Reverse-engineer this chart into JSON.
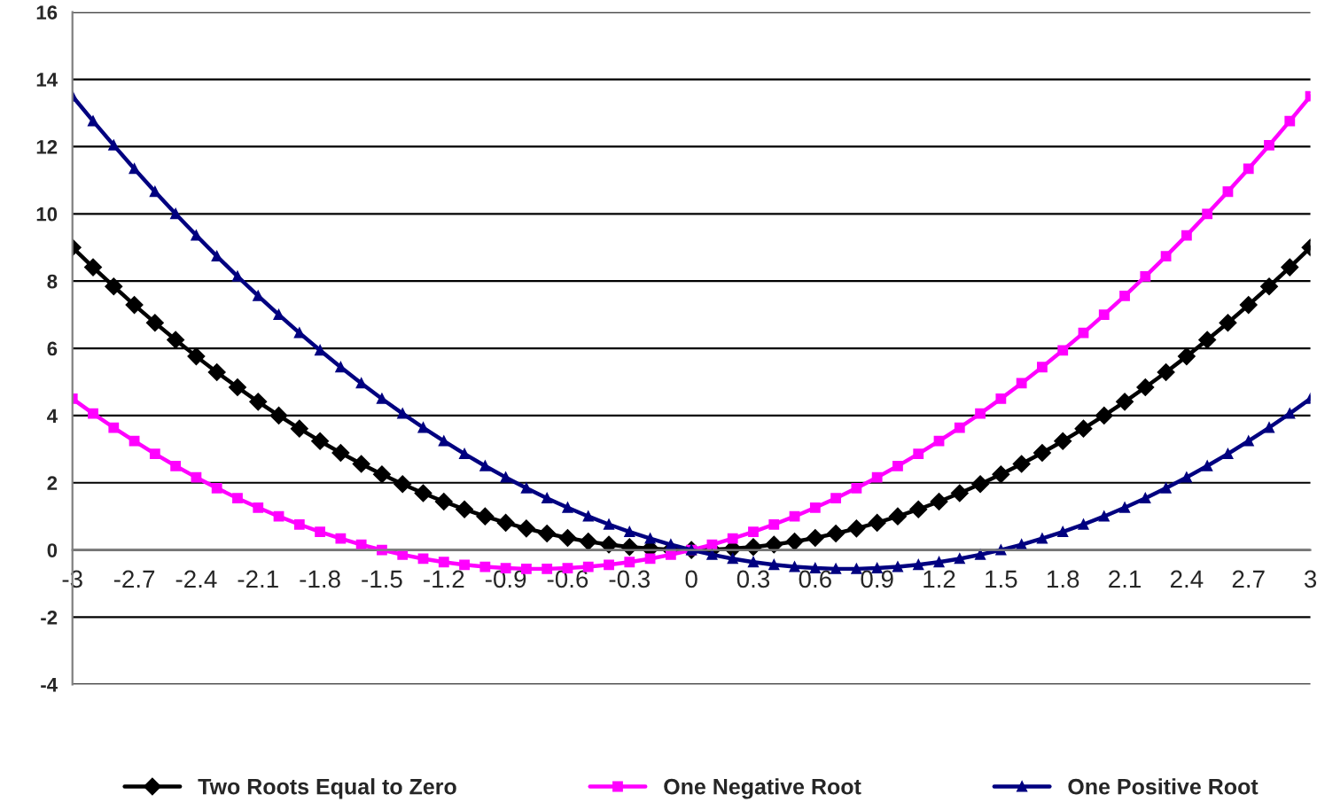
{
  "chart_data": {
    "type": "line",
    "categories": [
      "-3",
      null,
      null,
      "-2.7",
      null,
      null,
      "-2.4",
      null,
      null,
      "-2.1",
      null,
      null,
      "-1.8",
      null,
      null,
      "-1.5",
      null,
      null,
      "-1.2",
      null,
      null,
      "-0.9",
      null,
      null,
      "-0.6",
      null,
      null,
      "-0.3",
      null,
      null,
      "0",
      null,
      null,
      "0.3",
      null,
      null,
      "0.6",
      null,
      null,
      "0.9",
      null,
      null,
      "1.2",
      null,
      null,
      "1.5",
      null,
      null,
      "1.8",
      null,
      null,
      "2.1",
      null,
      null,
      "2.4",
      null,
      null,
      "2.7",
      null,
      null,
      "3"
    ],
    "series": [
      {
        "name": "Two Roots Equal to Zero",
        "color": "#000000",
        "marker": "diamond",
        "values": [
          9,
          8.41,
          7.84,
          7.29,
          6.76,
          6.25,
          5.76,
          5.29,
          4.84,
          4.41,
          4,
          3.61,
          3.24,
          2.89,
          2.56,
          2.25,
          1.96,
          1.69,
          1.44,
          1.21,
          1,
          0.81,
          0.64,
          0.49,
          0.36,
          0.25,
          0.16,
          0.09,
          0.04,
          0.01,
          0,
          0.01,
          0.04,
          0.09,
          0.16,
          0.25,
          0.36,
          0.49,
          0.64,
          0.81,
          1,
          1.21,
          1.44,
          1.69,
          1.96,
          2.25,
          2.56,
          2.89,
          3.24,
          3.61,
          4,
          4.41,
          4.84,
          5.29,
          5.76,
          6.25,
          6.76,
          7.29,
          7.84,
          8.41,
          9
        ]
      },
      {
        "name": "One Negative Root",
        "color": "#ff00ff",
        "marker": "square",
        "values": [
          4.5,
          4.06,
          3.64,
          3.24,
          2.86,
          2.5,
          2.16,
          1.84,
          1.54,
          1.26,
          1,
          0.76,
          0.54,
          0.34,
          0.16,
          0,
          -0.14,
          -0.26,
          -0.36,
          -0.44,
          -0.5,
          -0.54,
          -0.56,
          -0.56,
          -0.54,
          -0.5,
          -0.44,
          -0.36,
          -0.26,
          -0.14,
          0,
          0.16,
          0.34,
          0.54,
          0.76,
          1,
          1.26,
          1.54,
          1.84,
          2.16,
          2.5,
          2.86,
          3.24,
          3.64,
          4.06,
          4.5,
          4.96,
          5.44,
          5.94,
          6.46,
          7,
          7.56,
          8.14,
          8.74,
          9.36,
          10,
          10.66,
          11.34,
          12.04,
          12.76,
          13.5
        ]
      },
      {
        "name": "One Positive Root",
        "color": "#000080",
        "marker": "triangle",
        "values": [
          13.5,
          12.76,
          12.04,
          11.34,
          10.66,
          10,
          9.36,
          8.74,
          8.14,
          7.56,
          7,
          6.46,
          5.94,
          5.44,
          4.96,
          4.5,
          4.06,
          3.64,
          3.24,
          2.86,
          2.5,
          2.16,
          1.84,
          1.54,
          1.26,
          1,
          0.76,
          0.54,
          0.34,
          0.16,
          0,
          -0.14,
          -0.26,
          -0.36,
          -0.44,
          -0.5,
          -0.54,
          -0.56,
          -0.56,
          -0.54,
          -0.5,
          -0.44,
          -0.36,
          -0.26,
          -0.14,
          0,
          0.16,
          0.34,
          0.54,
          0.76,
          1,
          1.26,
          1.54,
          1.84,
          2.16,
          2.5,
          2.86,
          3.24,
          3.64,
          4.06,
          4.5
        ]
      }
    ],
    "ylim": [
      -4,
      16
    ],
    "yticks": [
      -4,
      -2,
      0,
      2,
      4,
      6,
      8,
      10,
      12,
      14,
      16
    ],
    "grid": "y",
    "legend": "bottom",
    "line_style": "solid"
  }
}
